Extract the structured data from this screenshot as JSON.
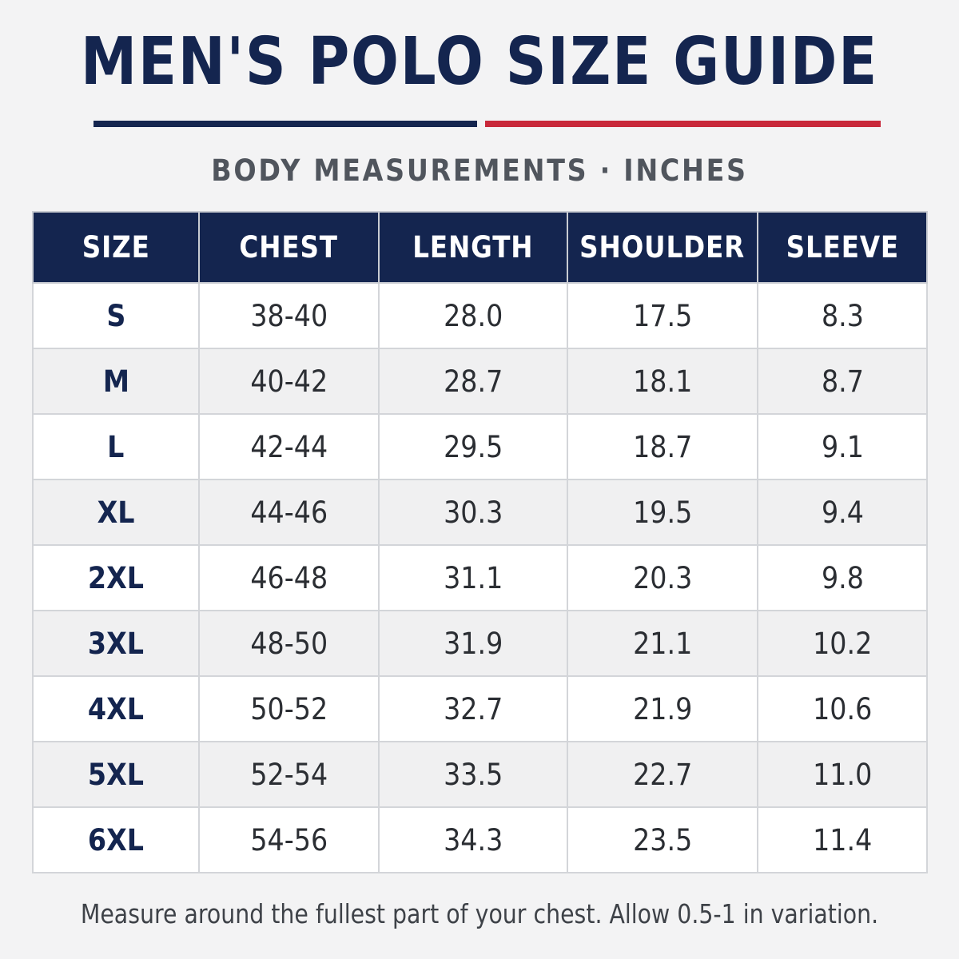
{
  "title": "MEN'S POLO SIZE GUIDE",
  "subtitle": "BODY MEASUREMENTS · INCHES",
  "colors": {
    "navy": "#14254f",
    "red": "#c8283a",
    "background": "#f3f3f4"
  },
  "table": {
    "headers": [
      "SIZE",
      "CHEST",
      "LENGTH",
      "SHOULDER",
      "SLEEVE"
    ],
    "rows": [
      [
        "S",
        "38-40",
        "28.0",
        "17.5",
        "8.3"
      ],
      [
        "M",
        "40-42",
        "28.7",
        "18.1",
        "8.7"
      ],
      [
        "L",
        "42-44",
        "29.5",
        "18.7",
        "9.1"
      ],
      [
        "XL",
        "44-46",
        "30.3",
        "19.5",
        "9.4"
      ],
      [
        "2XL",
        "46-48",
        "31.1",
        "20.3",
        "9.8"
      ],
      [
        "3XL",
        "48-50",
        "31.9",
        "21.1",
        "10.2"
      ],
      [
        "4XL",
        "50-52",
        "32.7",
        "21.9",
        "10.6"
      ],
      [
        "5XL",
        "52-54",
        "33.5",
        "22.7",
        "11.0"
      ],
      [
        "6XL",
        "54-56",
        "34.3",
        "23.5",
        "11.4"
      ]
    ]
  },
  "note": "Measure around the fullest part of your chest. Allow 0.5-1 in variation."
}
